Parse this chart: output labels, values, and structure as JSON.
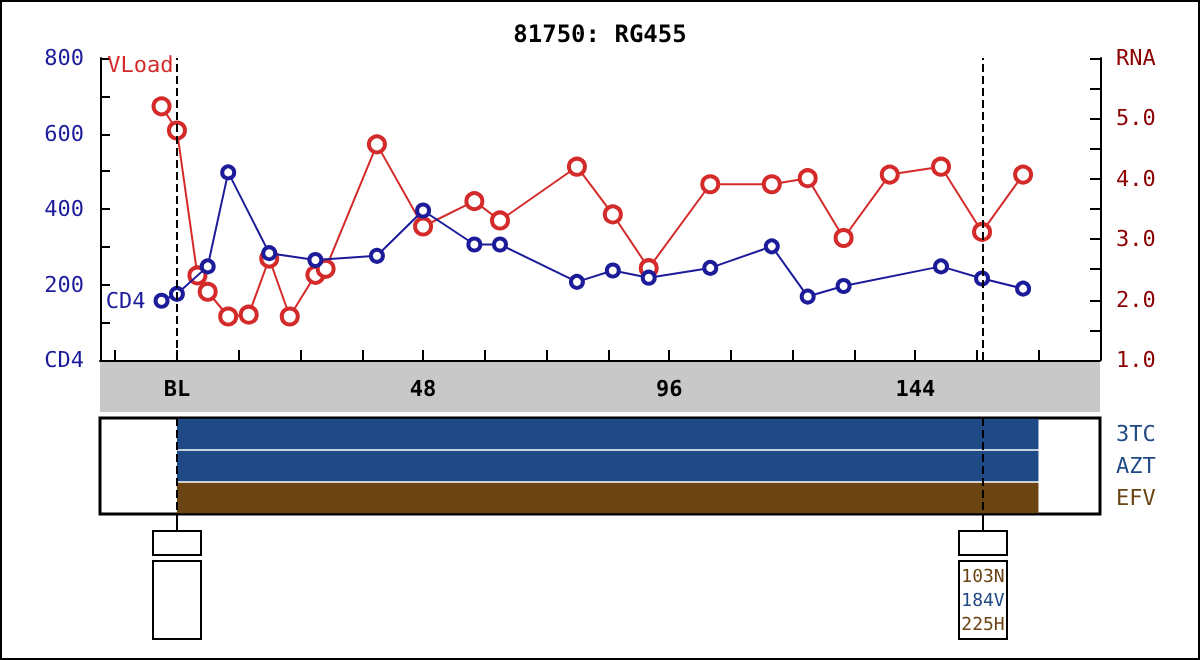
{
  "chart_data": [
    {
      "type": "line",
      "title": "81750: RG455",
      "series": [
        {
          "name": "CD4",
          "color": "#1c1c9a",
          "x": [
            -3,
            0,
            6,
            10,
            18,
            27,
            39,
            48,
            58,
            63,
            78,
            85,
            92,
            104,
            116,
            123,
            130,
            149,
            157,
            165
          ],
          "values": [
            157,
            175,
            248,
            497,
            283,
            265,
            276,
            396,
            306,
            306,
            207,
            237,
            218,
            244,
            301,
            168,
            196,
            248,
            216,
            189
          ]
        },
        {
          "name": "VLoad",
          "color": "#d42a2a",
          "axis": "y2",
          "x": [
            -3,
            0,
            4,
            6,
            10,
            14,
            18,
            22,
            27,
            29,
            39,
            48,
            58,
            63,
            78,
            85,
            92,
            104,
            116,
            123,
            130,
            139,
            149,
            157,
            165
          ],
          "values": [
            5.2,
            4.8,
            2.4,
            2.13,
            1.72,
            1.75,
            2.68,
            1.72,
            2.41,
            2.51,
            4.57,
            3.21,
            3.63,
            3.31,
            4.2,
            3.41,
            2.52,
            3.91,
            3.91,
            4.01,
            3.02,
            4.07,
            4.2,
            3.12,
            4.07
          ]
        }
      ],
      "xlim": [
        -15,
        180
      ],
      "xticks": [
        {
          "value": -12,
          "label": null
        },
        {
          "value": 0,
          "label": "BL"
        },
        {
          "value": 12,
          "label": null
        },
        {
          "value": 24,
          "label": null
        },
        {
          "value": 36,
          "label": null
        },
        48,
        {
          "value": 60,
          "label": null
        },
        {
          "value": 72,
          "label": null
        },
        {
          "value": 84,
          "label": null
        },
        96,
        {
          "value": 108,
          "label": null
        },
        {
          "value": 120,
          "label": null
        },
        {
          "value": 132,
          "label": null
        },
        144,
        {
          "value": 156,
          "label": null
        },
        {
          "value": 168,
          "label": null
        }
      ],
      "ylim": [
        0,
        800
      ],
      "yticks": [
        {
          "value": 0,
          "label": "CD4"
        },
        {
          "value": 100,
          "label": null
        },
        200,
        {
          "value": 300,
          "label": null
        },
        400,
        {
          "value": 500,
          "label": null
        },
        600,
        {
          "value": 700,
          "label": null
        },
        800
      ],
      "y2lim": [
        1,
        6
      ],
      "y2ticks": [
        {
          "value": 1,
          "label": "1.0"
        },
        {
          "value": 1.5,
          "label": null
        },
        {
          "value": 2,
          "label": "2.0"
        },
        {
          "value": 2.5,
          "label": null
        },
        {
          "value": 3,
          "label": "3.0"
        },
        {
          "value": 3.5,
          "label": null
        },
        {
          "value": 4,
          "label": "4.0"
        },
        {
          "value": 4.5,
          "label": null
        },
        {
          "value": 5,
          "label": "5.0"
        },
        {
          "value": 5.5,
          "label": null
        },
        {
          "value": 6,
          "label": "RNA"
        }
      ],
      "ref_lines": [
        {
          "axis": "x",
          "value": 0,
          "line_style": "dashed"
        },
        {
          "axis": "x",
          "value": 157,
          "line_style": "dashed"
        }
      ],
      "marker": "circle",
      "grid": false,
      "legend": false
    },
    {
      "type": "bar",
      "orientation": "horizontal",
      "categories": [
        "3TC",
        "AZT",
        "EFV"
      ],
      "base": [
        0,
        0,
        0
      ],
      "values": [
        168,
        168,
        168
      ],
      "colors": [
        "#1f4a85",
        "#1f4a85",
        "#6b4414"
      ],
      "xlim": [
        -15,
        180
      ],
      "tick_labels": "y",
      "ref_lines": [
        {
          "axis": "x",
          "value": 0,
          "line_style": "dashed"
        },
        {
          "axis": "x",
          "value": 157,
          "line_style": "dashed"
        }
      ],
      "annotations": [
        "103N",
        "184V",
        "225H"
      ]
    }
  ]
}
